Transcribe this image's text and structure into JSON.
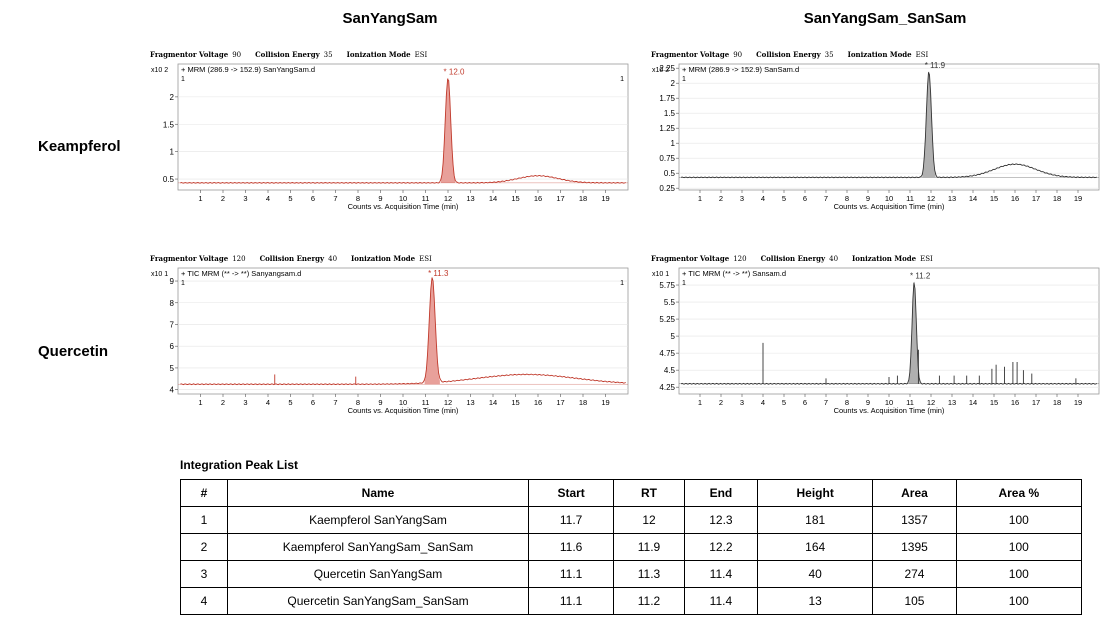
{
  "columns": [
    "SanYangSam",
    "SanYangSam_SanSam"
  ],
  "rows": [
    "Keampferol",
    "Quercetin"
  ],
  "table": {
    "title": "Integration Peak List",
    "headers": [
      "#",
      "Name",
      "Start",
      "RT",
      "End",
      "Height",
      "Area",
      "Area %"
    ],
    "rows": [
      [
        "1",
        "Kaempferol SanYangSam",
        "11.7",
        "12",
        "12.3",
        "181",
        "1357",
        "100"
      ],
      [
        "2",
        "Kaempferol SanYangSam_SanSam",
        "11.6",
        "11.9",
        "12.2",
        "164",
        "1395",
        "100"
      ],
      [
        "3",
        "Quercetin SanYangSam",
        "11.1",
        "11.3",
        "11.4",
        "40",
        "274",
        "100"
      ],
      [
        "4",
        "Quercetin SanYangSam_SanSam",
        "11.1",
        "11.2",
        "11.4",
        "13",
        "105",
        "100"
      ]
    ]
  },
  "chart_data": [
    {
      "type": "line",
      "params": {
        "fv_label": "Fragmentor Voltage",
        "fv": "90",
        "ce_label": "Collision Energy",
        "ce": "35",
        "im_label": "Ionization Mode",
        "im": "ESI"
      },
      "title": "+ MRM (286.9 -> 152.9) SanYangSam.d",
      "exp": "x10 2",
      "xlabel": "Counts vs. Acquisition Time (min)",
      "xlim": [
        0,
        20
      ],
      "ylim": [
        0.3,
        2.6
      ],
      "xticks": [
        "1",
        "2",
        "3",
        "4",
        "5",
        "6",
        "7",
        "8",
        "9",
        "10",
        "11",
        "12",
        "13",
        "14",
        "15",
        "16",
        "17",
        "18",
        "19"
      ],
      "yticks": [
        [
          "0.5",
          0.5
        ],
        [
          "1",
          1
        ],
        [
          "1.5",
          1.5
        ],
        [
          "2",
          2
        ]
      ],
      "baseline": 0.43,
      "peak": {
        "label": "* 12.0",
        "rt": 12.0,
        "height": 2.35,
        "width": 0.12
      },
      "bump": {
        "center": 16.0,
        "height": 0.13,
        "width": 0.9
      },
      "spikes": [],
      "corner_left": "1",
      "corner_right": "1",
      "color": "#c0392b",
      "fill": "#e8a09a"
    },
    {
      "type": "line",
      "params": {
        "fv_label": "Fragmentor Voltage",
        "fv": "90",
        "ce_label": "Collision Energy",
        "ce": "35",
        "im_label": "Ionization Mode",
        "im": "ESI"
      },
      "title": "+ MRM (286.9 -> 152.9) SanSam.d",
      "exp": "x10 2",
      "xlabel": "Counts vs. Acquisition Time (min)",
      "xlim": [
        0,
        20
      ],
      "ylim": [
        0.22,
        2.32
      ],
      "xticks": [
        "1",
        "2",
        "3",
        "4",
        "5",
        "6",
        "7",
        "8",
        "9",
        "10",
        "11",
        "12",
        "13",
        "14",
        "15",
        "16",
        "17",
        "18",
        "19"
      ],
      "yticks": [
        [
          "0.25",
          0.25
        ],
        [
          "0.5",
          0.5
        ],
        [
          "0.75",
          0.75
        ],
        [
          "1",
          1
        ],
        [
          "1.25",
          1.25
        ],
        [
          "1.5",
          1.5
        ],
        [
          "1.75",
          1.75
        ],
        [
          "2",
          2
        ],
        [
          "2.25",
          2.25
        ]
      ],
      "baseline": 0.43,
      "peak": {
        "label": "* 11.9",
        "rt": 11.9,
        "height": 2.2,
        "width": 0.12
      },
      "bump": {
        "center": 16.0,
        "height": 0.22,
        "width": 1.0
      },
      "spikes": [],
      "corner_left": "1",
      "corner_right": "",
      "color": "#333333",
      "fill": "#b0b0b0"
    },
    {
      "type": "line",
      "params": {
        "fv_label": "Fragmentor Voltage",
        "fv": "120",
        "ce_label": "Collision Energy",
        "ce": "40",
        "im_label": "Ionization Mode",
        "im": "ESI"
      },
      "title": "+ TIC MRM (** -> **) Sanyangsam.d",
      "exp": "x10 1",
      "xlabel": "Counts vs. Acquisition Time (min)",
      "xlim": [
        0,
        20
      ],
      "ylim": [
        3.8,
        9.6
      ],
      "xticks": [
        "1",
        "2",
        "3",
        "4",
        "5",
        "6",
        "7",
        "8",
        "9",
        "10",
        "11",
        "12",
        "13",
        "14",
        "15",
        "16",
        "17",
        "18",
        "19"
      ],
      "yticks": [
        [
          "4",
          4
        ],
        [
          "5",
          5
        ],
        [
          "6",
          6
        ],
        [
          "7",
          7
        ],
        [
          "8",
          8
        ],
        [
          "9",
          9
        ]
      ],
      "baseline": 4.25,
      "peak": {
        "label": "* 11.3",
        "rt": 11.3,
        "height": 9.1,
        "width": 0.13
      },
      "bump": {
        "center": 15.5,
        "height": 0.45,
        "width": 2.2
      },
      "spikes": [
        [
          4.3,
          4.7
        ],
        [
          7.9,
          4.6
        ]
      ],
      "corner_left": "1",
      "corner_right": "1",
      "color": "#c0392b",
      "fill": "#e8a09a"
    },
    {
      "type": "line",
      "params": {
        "fv_label": "Fragmentor Voltage",
        "fv": "120",
        "ce_label": "Collision Energy",
        "ce": "40",
        "im_label": "Ionization Mode",
        "im": "ESI"
      },
      "title": "+ TIC MRM (** -> **) Sansam.d",
      "exp": "x10 1",
      "xlabel": "Counts vs. Acquisition Time (min)",
      "xlim": [
        0,
        20
      ],
      "ylim": [
        4.15,
        6.0
      ],
      "xticks": [
        "1",
        "2",
        "3",
        "4",
        "5",
        "6",
        "7",
        "8",
        "9",
        "10",
        "11",
        "12",
        "13",
        "14",
        "15",
        "16",
        "17",
        "18",
        "19"
      ],
      "yticks": [
        [
          "4.25",
          4.25
        ],
        [
          "4.5",
          4.5
        ],
        [
          "4.75",
          4.75
        ],
        [
          "5",
          5
        ],
        [
          "5.25",
          5.25
        ],
        [
          "5.5",
          5.5
        ],
        [
          "5.75",
          5.75
        ]
      ],
      "baseline": 4.3,
      "peak": {
        "label": "* 11.2",
        "rt": 11.2,
        "height": 5.8,
        "width": 0.1
      },
      "bump": {
        "center": 14,
        "height": 0,
        "width": 1
      },
      "spikes": [
        [
          4.0,
          4.9
        ],
        [
          11.4,
          4.8
        ],
        [
          7.0,
          4.38
        ],
        [
          10.0,
          4.4
        ],
        [
          10.4,
          4.42
        ],
        [
          12.4,
          4.42
        ],
        [
          13.1,
          4.42
        ],
        [
          13.7,
          4.42
        ],
        [
          14.3,
          4.42
        ],
        [
          14.9,
          4.52
        ],
        [
          15.1,
          4.58
        ],
        [
          15.5,
          4.55
        ],
        [
          15.9,
          4.62
        ],
        [
          16.1,
          4.62
        ],
        [
          16.4,
          4.5
        ],
        [
          16.8,
          4.45
        ],
        [
          18.9,
          4.38
        ]
      ],
      "corner_left": "1",
      "corner_right": "",
      "color": "#333333",
      "fill": "#b0b0b0"
    }
  ]
}
